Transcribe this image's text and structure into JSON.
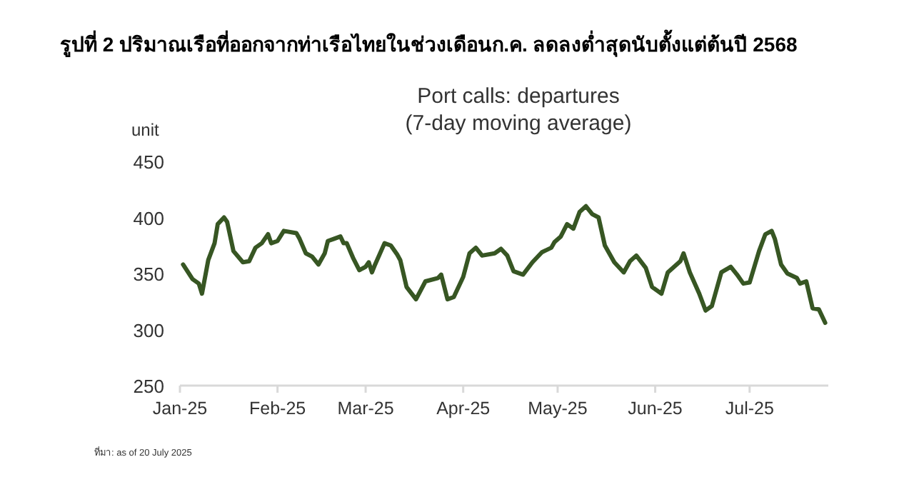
{
  "chart_data": {
    "type": "line",
    "title": "รูปที่ 2 ปริมาณเรือที่ออกจากท่าเรือไทยในช่วงเดือนก.ค. ลดลงต่ำสุดนับตั้งแต่ต้นปี 2568",
    "subtitle": "Port calls: departures\n(7-day moving average)",
    "ylabel": "unit",
    "x": [
      "2025-01-02",
      "2025-01-05",
      "2025-01-07",
      "2025-01-08",
      "2025-01-10",
      "2025-01-12",
      "2025-01-13",
      "2025-01-15",
      "2025-01-16",
      "2025-01-18",
      "2025-01-21",
      "2025-01-23",
      "2025-01-25",
      "2025-01-27",
      "2025-01-29",
      "2025-01-30",
      "2025-02-01",
      "2025-02-03",
      "2025-02-07",
      "2025-02-08",
      "2025-02-10",
      "2025-02-12",
      "2025-02-14",
      "2025-02-16",
      "2025-02-17",
      "2025-02-19",
      "2025-02-21",
      "2025-02-22",
      "2025-02-23",
      "2025-02-25",
      "2025-02-27",
      "2025-03-01",
      "2025-03-02",
      "2025-03-03",
      "2025-03-04",
      "2025-03-07",
      "2025-03-09",
      "2025-03-11",
      "2025-03-12",
      "2025-03-14",
      "2025-03-17",
      "2025-03-20",
      "2025-03-24",
      "2025-03-25",
      "2025-03-27",
      "2025-03-29",
      "2025-04-01",
      "2025-04-03",
      "2025-04-05",
      "2025-04-07",
      "2025-04-11",
      "2025-04-13",
      "2025-04-15",
      "2025-04-17",
      "2025-04-20",
      "2025-04-23",
      "2025-04-26",
      "2025-04-29",
      "2025-04-30",
      "2025-05-02",
      "2025-05-04",
      "2025-05-06",
      "2025-05-08",
      "2025-05-10",
      "2025-05-12",
      "2025-05-14",
      "2025-05-16",
      "2025-05-19",
      "2025-05-22",
      "2025-05-24",
      "2025-05-26",
      "2025-05-29",
      "2025-05-31",
      "2025-06-03",
      "2025-06-05",
      "2025-06-09",
      "2025-06-10",
      "2025-06-12",
      "2025-06-15",
      "2025-06-17",
      "2025-06-19",
      "2025-06-22",
      "2025-06-25",
      "2025-06-27",
      "2025-06-29",
      "2025-07-01",
      "2025-07-04",
      "2025-07-06",
      "2025-07-08",
      "2025-07-09",
      "2025-07-11",
      "2025-07-13",
      "2025-07-16",
      "2025-07-17",
      "2025-07-19",
      "2025-07-21",
      "2025-07-23",
      "2025-07-25"
    ],
    "series": [
      {
        "color": "#375623",
        "values": [
          358,
          345,
          341,
          332,
          362,
          377,
          394,
          400,
          396,
          370,
          360,
          361,
          373,
          377,
          385,
          377,
          379,
          388,
          386,
          381,
          368,
          365,
          358,
          368,
          379,
          381,
          383,
          377,
          377,
          364,
          353,
          356,
          360,
          351,
          358,
          377,
          375,
          367,
          362,
          338,
          327,
          343,
          346,
          349,
          327,
          329,
          347,
          368,
          373,
          366,
          368,
          372,
          366,
          352,
          349,
          360,
          369,
          373,
          378,
          383,
          394,
          390,
          405,
          410,
          403,
          400,
          375,
          360,
          351,
          361,
          366,
          355,
          338,
          332,
          351,
          361,
          368,
          351,
          332,
          317,
          321,
          351,
          356,
          349,
          341,
          342,
          370,
          385,
          388,
          381,
          358,
          350,
          346,
          341,
          343,
          319,
          318,
          306
        ]
      }
    ],
    "ylim": [
      250,
      450
    ],
    "yticks": [
      250,
      300,
      350,
      400,
      450
    ],
    "xlim": [
      "2025-01-01",
      "2025-07-26"
    ],
    "xticks": [
      {
        "value": "2025-01-01",
        "label": "Jan-25"
      },
      {
        "value": "2025-02-01",
        "label": "Feb-25"
      },
      {
        "value": "2025-03-01",
        "label": "Mar-25"
      },
      {
        "value": "2025-04-01",
        "label": "Apr-25"
      },
      {
        "value": "2025-05-01",
        "label": "May-25"
      },
      {
        "value": "2025-06-01",
        "label": "Jun-25"
      },
      {
        "value": "2025-07-01",
        "label": "Jul-25"
      }
    ],
    "grid": false,
    "line_style": "solid",
    "marker": "none",
    "annotations": [
      "ที่มา: as of 20 July 2025"
    ]
  }
}
